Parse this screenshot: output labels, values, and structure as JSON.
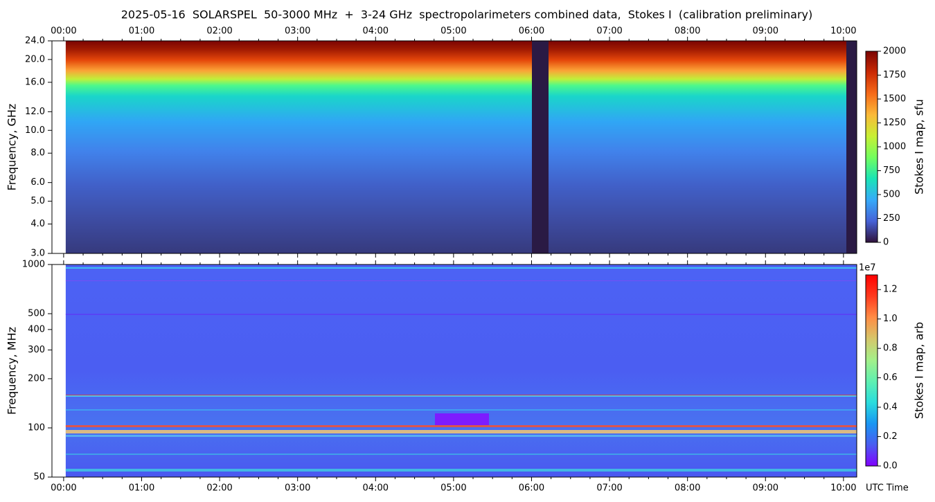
{
  "chart_data": [
    {
      "type": "spectrogram",
      "title": "2025-05-16  SOLARSPEL  50-3000 MHz  +  3-24 GHz  spectropolarimeters combined data,  Stokes I  (calibration preliminary)",
      "ylabel": "Frequency, GHz",
      "xlim": [
        -0.15,
        10.17
      ],
      "xticks": [
        {
          "value": 0,
          "label": "00:00"
        },
        {
          "value": 1,
          "label": "01:00"
        },
        {
          "value": 2,
          "label": "02:00"
        },
        {
          "value": 3,
          "label": "03:00"
        },
        {
          "value": 4,
          "label": "04:00"
        },
        {
          "value": 5,
          "label": "05:00"
        },
        {
          "value": 6,
          "label": "06:00"
        },
        {
          "value": 7,
          "label": "07:00"
        },
        {
          "value": 8,
          "label": "08:00"
        },
        {
          "value": 9,
          "label": "09:00"
        },
        {
          "value": 10,
          "label": "10:00"
        }
      ],
      "xtick_position": "top",
      "ylim": [
        3,
        24
      ],
      "yscale": "log",
      "yticks": [
        {
          "value": 3,
          "label": "3.0"
        },
        {
          "value": 4,
          "label": "4.0"
        },
        {
          "value": 5,
          "label": "5.0"
        },
        {
          "value": 6,
          "label": "6.0"
        },
        {
          "value": 8,
          "label": "8.0"
        },
        {
          "value": 10,
          "label": "10.0"
        },
        {
          "value": 12,
          "label": "12.0"
        },
        {
          "value": 16,
          "label": "16.0"
        },
        {
          "value": 20,
          "label": "20.0"
        },
        {
          "value": 24,
          "label": "24.0"
        }
      ],
      "colormap": "turbo",
      "colorbar_label": "Stokes I map, sfu",
      "clim": [
        0,
        2000
      ],
      "cticks": [
        0,
        250,
        500,
        750,
        1000,
        1250,
        1500,
        1750,
        2000
      ]
    },
    {
      "type": "spectrogram",
      "ylabel": "Frequency, MHz",
      "xlabel": "UTC Time",
      "xlim": [
        -0.15,
        10.17
      ],
      "xticks": [
        {
          "value": 0,
          "label": "00:00"
        },
        {
          "value": 1,
          "label": "01:00"
        },
        {
          "value": 2,
          "label": "02:00"
        },
        {
          "value": 3,
          "label": "03:00"
        },
        {
          "value": 4,
          "label": "04:00"
        },
        {
          "value": 5,
          "label": "05:00"
        },
        {
          "value": 6,
          "label": "06:00"
        },
        {
          "value": 7,
          "label": "07:00"
        },
        {
          "value": 8,
          "label": "08:00"
        },
        {
          "value": 9,
          "label": "09:00"
        },
        {
          "value": 10,
          "label": "10:00"
        }
      ],
      "xtick_position": "bottom",
      "ylim": [
        50,
        1000
      ],
      "yscale": "log",
      "yticks": [
        50,
        100,
        200,
        300,
        400,
        500,
        1000
      ],
      "colormap": "rainbow",
      "colorbar_label": "Stokes I map, arb",
      "colorbar_offset": "1e7",
      "clim": [
        0,
        13000000
      ],
      "cticks": [
        {
          "value": 0,
          "label": "0.0"
        },
        {
          "value": 2000000,
          "label": "0.2"
        },
        {
          "value": 4000000,
          "label": "0.4"
        },
        {
          "value": 6000000,
          "label": "0.6"
        },
        {
          "value": 8000000,
          "label": "0.8"
        },
        {
          "value": 10000000,
          "label": "1.0"
        },
        {
          "value": 12000000,
          "label": "1.2"
        }
      ]
    }
  ]
}
